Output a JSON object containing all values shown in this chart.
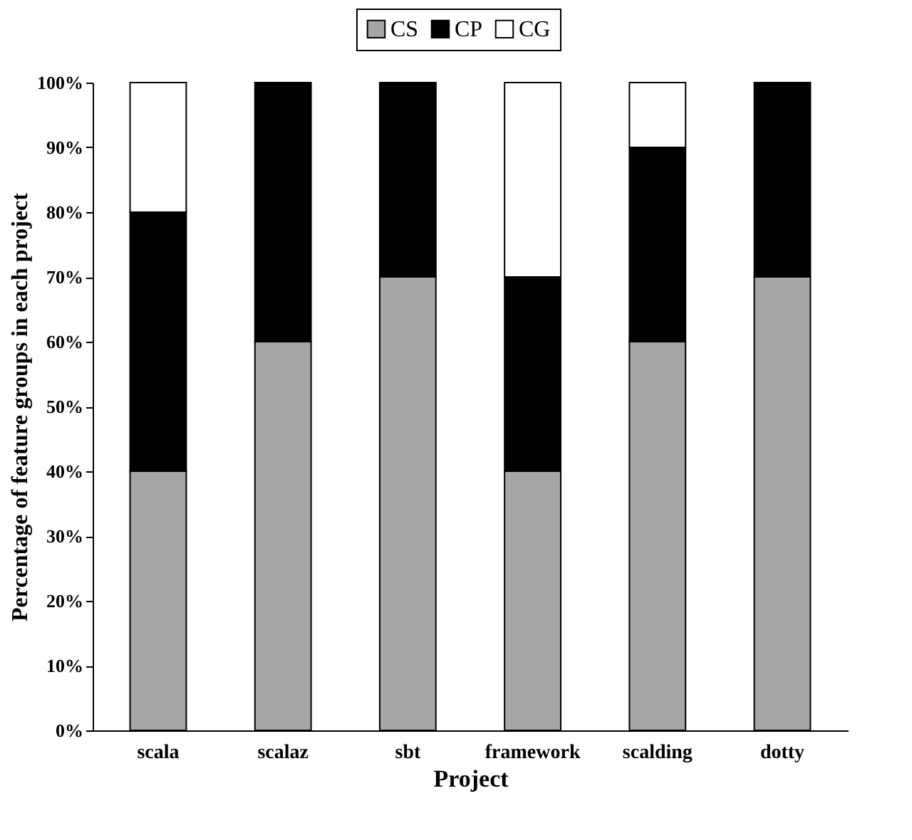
{
  "chart_data": {
    "type": "bar",
    "stacked": true,
    "xlabel": "Project",
    "ylabel": "Percentage of feature groups in each project",
    "categories": [
      "scala",
      "scalaz",
      "sbt",
      "framework",
      "scalding",
      "dotty"
    ],
    "series": [
      {
        "name": "CS",
        "color": "#a6a6a6",
        "values": [
          40,
          60,
          70,
          40,
          60,
          70
        ]
      },
      {
        "name": "CP",
        "color": "#000000",
        "values": [
          40,
          40,
          30,
          30,
          30,
          30
        ]
      },
      {
        "name": "CG",
        "color": "#ffffff",
        "values": [
          20,
          0,
          0,
          30,
          10,
          0
        ]
      }
    ],
    "ylim": [
      0,
      100
    ],
    "yticks": [
      {
        "value": 0,
        "label": "0%"
      },
      {
        "value": 10,
        "label": "10%"
      },
      {
        "value": 20,
        "label": "20%"
      },
      {
        "value": 30,
        "label": "30%"
      },
      {
        "value": 40,
        "label": "40%"
      },
      {
        "value": 50,
        "label": "50%"
      },
      {
        "value": 60,
        "label": "60%"
      },
      {
        "value": 70,
        "label": "70%"
      },
      {
        "value": 80,
        "label": "80%"
      },
      {
        "value": 90,
        "label": "90%"
      },
      {
        "value": 100,
        "label": "100%"
      }
    ],
    "grid": false,
    "legend": "top"
  }
}
